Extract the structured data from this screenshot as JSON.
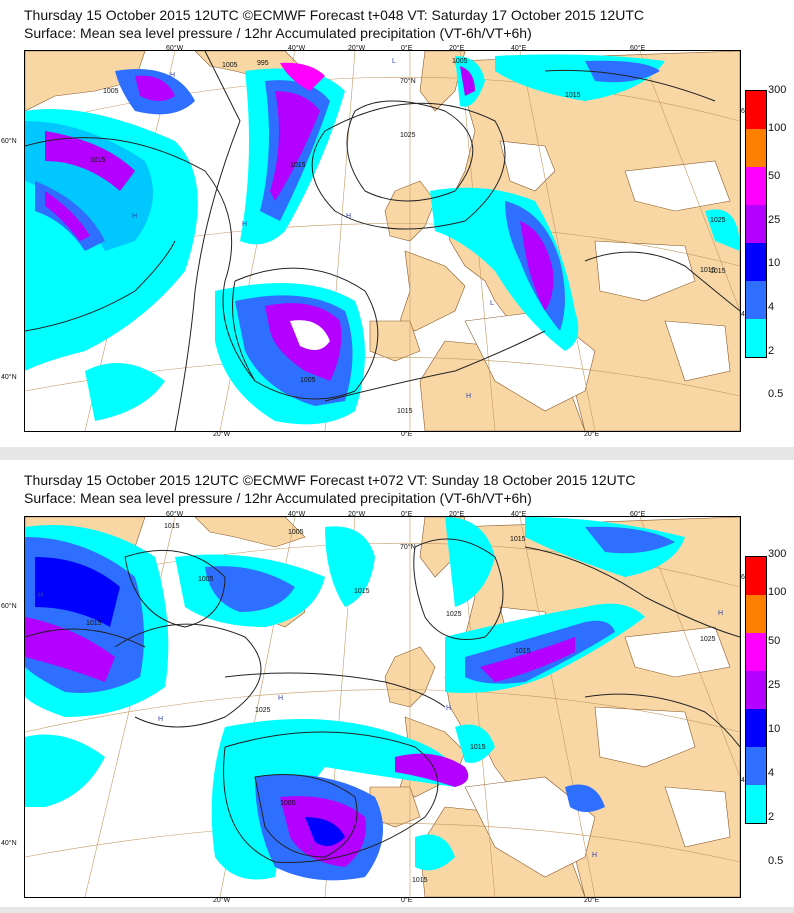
{
  "panels": [
    {
      "title_line1": "Thursday 15 October 2015 12UTC ©ECMWF Forecast t+048 VT: Saturday 17 October 2015 12UTC",
      "title_line2": "Surface: Mean sea level pressure / 12hr Accumulated precipitation (VT-6h/VT+6h)",
      "top_lon_labels": [
        "60°W",
        "40°W",
        "20°W",
        "0°E",
        "20°E",
        "40°E",
        "60°E"
      ],
      "bottom_lon_labels": [
        "20°W",
        "0°E",
        "20°E"
      ],
      "left_lat_labels": [
        "60°N",
        "40°N"
      ],
      "inner_lat_label": "70°N",
      "right_lat_labels": [
        "6",
        "4"
      ],
      "isobar_labels": [
        "1005",
        "1005",
        "995",
        "1005",
        "1015",
        "1015",
        "1025",
        "1015",
        "1015",
        "1025",
        "1005",
        "1015",
        "1015"
      ],
      "pressure_centres": [
        "H",
        "H",
        "H",
        "L",
        "H",
        "L",
        "H"
      ]
    },
    {
      "title_line1": "Thursday 15 October 2015 12UTC ©ECMWF Forecast t+072 VT: Sunday 18 October 2015 12UTC",
      "title_line2": "Surface: Mean sea level pressure / 12hr Accumulated precipitation (VT-6h/VT+6h)",
      "top_lon_labels": [
        "60°W",
        "40°W",
        "20°W",
        "0°E",
        "20°E",
        "40°E",
        "60°E"
      ],
      "bottom_lon_labels": [
        "20°W",
        "0°E",
        "20°E"
      ],
      "left_lat_labels": [
        "60°N",
        "40°N"
      ],
      "inner_lat_label": "70°N",
      "right_lat_labels": [
        "6",
        "4"
      ],
      "isobar_labels": [
        "1015",
        "1005",
        "1005",
        "1015",
        "1015",
        "1025",
        "1015",
        "1025",
        "1025",
        "1015",
        "1005",
        "1015",
        "1015"
      ],
      "pressure_centres": [
        "H",
        "H",
        "H",
        "L",
        "H",
        "H",
        "H"
      ]
    }
  ],
  "legend": {
    "ticks": [
      "300",
      "100",
      "50",
      "25",
      "10",
      "4",
      "2",
      "0.5"
    ],
    "colors": [
      "#ff0000",
      "#ff8000",
      "#ff00ff",
      "#b400ff",
      "#0000ff",
      "#2f6fff",
      "#00c8ff",
      "#00ffff"
    ]
  },
  "colors": {
    "land": "#f8d7a5",
    "sea": "#ffffff",
    "isobar": "#222222",
    "grid": "#c49a63"
  }
}
